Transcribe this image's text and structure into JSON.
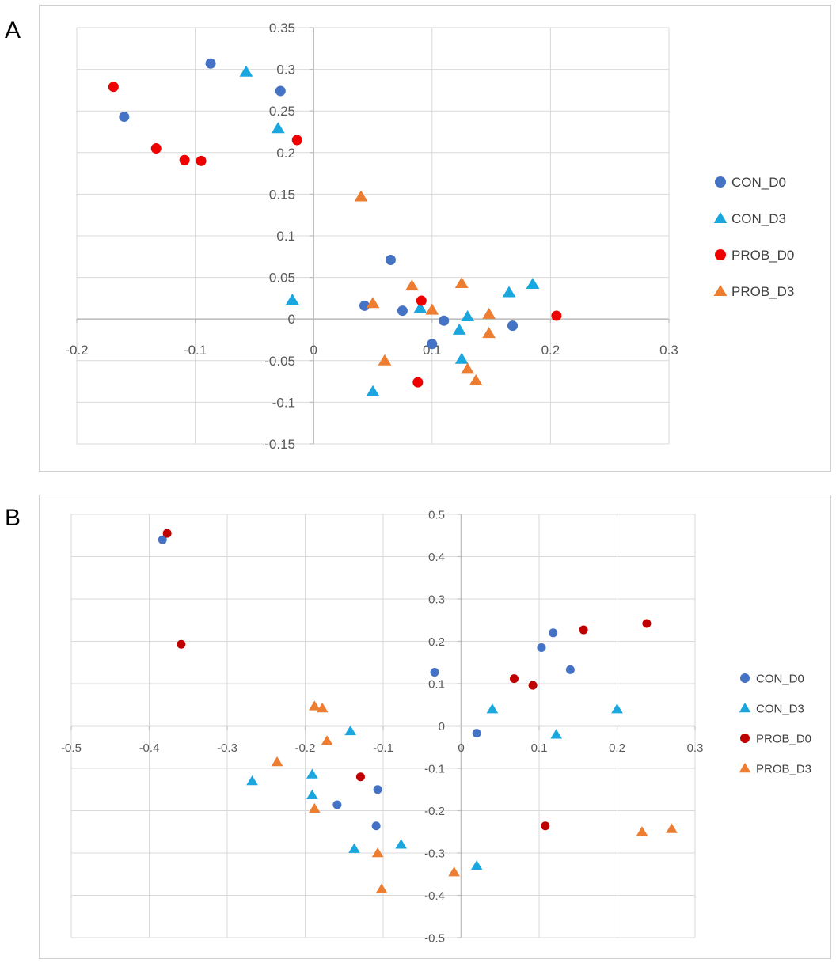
{
  "panels": {
    "a_label": "A",
    "b_label": "B"
  },
  "colors": {
    "CON_D0": "#4472c4",
    "CON_D3": "#1aa7e0",
    "PROB_D0_A": "#ee0000",
    "PROB_D0_B": "#c00000",
    "PROB_D3": "#ed7d31",
    "grid": "#d9d9d9",
    "axis": "#bfbfbf"
  },
  "chart_data": [
    {
      "type": "scatter",
      "panel": "A",
      "title": "",
      "xlim": [
        -0.2,
        0.3
      ],
      "ylim": [
        -0.15,
        0.35
      ],
      "x_ticks": [
        "-0.2",
        "-0.1",
        "0",
        "0.1",
        "0.2",
        "0.3"
      ],
      "y_ticks": [
        "0.35",
        "0.3",
        "0.25",
        "0.2",
        "0.15",
        "0.1",
        "0.05",
        "0",
        "-0.05",
        "-0.1",
        "-0.15"
      ],
      "legend": [
        "CON_D0",
        "CON_D3",
        "PROB_D0",
        "PROB_D3"
      ],
      "series": [
        {
          "name": "CON_D0",
          "marker": "circle",
          "points": [
            [
              -0.087,
              0.307
            ],
            [
              -0.16,
              0.243
            ],
            [
              -0.028,
              0.274
            ],
            [
              0.065,
              0.071
            ],
            [
              0.043,
              0.016
            ],
            [
              0.075,
              0.01
            ],
            [
              0.11,
              -0.002
            ],
            [
              0.1,
              -0.03
            ],
            [
              0.168,
              -0.008
            ]
          ]
        },
        {
          "name": "CON_D3",
          "marker": "triangle",
          "points": [
            [
              -0.057,
              0.297
            ],
            [
              -0.03,
              0.229
            ],
            [
              -0.018,
              0.023
            ],
            [
              0.05,
              -0.087
            ],
            [
              0.09,
              0.013
            ],
            [
              0.123,
              -0.013
            ],
            [
              0.13,
              0.003
            ],
            [
              0.125,
              -0.048
            ],
            [
              0.165,
              0.032
            ],
            [
              0.185,
              0.042
            ]
          ]
        },
        {
          "name": "PROB_D0",
          "marker": "circle",
          "points": [
            [
              -0.169,
              0.279
            ],
            [
              -0.133,
              0.205
            ],
            [
              -0.109,
              0.191
            ],
            [
              -0.095,
              0.19
            ],
            [
              -0.014,
              0.215
            ],
            [
              0.091,
              0.022
            ],
            [
              0.088,
              -0.076
            ],
            [
              0.205,
              0.004
            ]
          ]
        },
        {
          "name": "PROB_D3",
          "marker": "triangle",
          "points": [
            [
              0.04,
              0.147
            ],
            [
              0.05,
              0.019
            ],
            [
              0.06,
              -0.05
            ],
            [
              0.083,
              0.04
            ],
            [
              0.1,
              0.011
            ],
            [
              0.125,
              0.043
            ],
            [
              0.13,
              -0.06
            ],
            [
              0.137,
              -0.074
            ],
            [
              0.148,
              0.006
            ],
            [
              0.148,
              -0.017
            ]
          ]
        }
      ]
    },
    {
      "type": "scatter",
      "panel": "B",
      "title": "",
      "xlim": [
        -0.5,
        0.3
      ],
      "ylim": [
        -0.5,
        0.5
      ],
      "x_ticks": [
        "-0.5",
        "-0.4",
        "-0.3",
        "-0.2",
        "-0.1",
        "0",
        "0.1",
        "0.2",
        "0.3"
      ],
      "y_ticks": [
        "0.5",
        "0.4",
        "0.3",
        "0.2",
        "0.1",
        "0",
        "-0.1",
        "-0.2",
        "-0.3",
        "-0.4",
        "-0.5"
      ],
      "legend": [
        "CON_D0",
        "CON_D3",
        "PROB_D0",
        "PROB_D3"
      ],
      "series": [
        {
          "name": "CON_D0",
          "marker": "circle",
          "points": [
            [
              -0.383,
              0.44
            ],
            [
              -0.034,
              0.127
            ],
            [
              0.02,
              -0.017
            ],
            [
              0.103,
              0.185
            ],
            [
              0.118,
              0.22
            ],
            [
              0.14,
              0.133
            ],
            [
              -0.107,
              -0.15
            ],
            [
              -0.159,
              -0.186
            ],
            [
              -0.109,
              -0.236
            ]
          ]
        },
        {
          "name": "CON_D3",
          "marker": "triangle",
          "points": [
            [
              -0.268,
              -0.13
            ],
            [
              -0.191,
              -0.114
            ],
            [
              -0.191,
              -0.163
            ],
            [
              -0.142,
              -0.012
            ],
            [
              -0.137,
              -0.29
            ],
            [
              -0.077,
              -0.28
            ],
            [
              0.04,
              0.04
            ],
            [
              0.02,
              -0.33
            ],
            [
              0.122,
              -0.02
            ],
            [
              0.2,
              0.04
            ]
          ]
        },
        {
          "name": "PROB_D0",
          "marker": "circle",
          "points": [
            [
              -0.377,
              0.455
            ],
            [
              -0.359,
              0.193
            ],
            [
              -0.129,
              -0.12
            ],
            [
              0.068,
              0.112
            ],
            [
              0.092,
              0.096
            ],
            [
              0.157,
              0.227
            ],
            [
              0.238,
              0.242
            ],
            [
              0.108,
              -0.236
            ]
          ]
        },
        {
          "name": "PROB_D3",
          "marker": "triangle",
          "points": [
            [
              -0.188,
              0.047
            ],
            [
              -0.178,
              0.042
            ],
            [
              -0.172,
              -0.035
            ],
            [
              -0.236,
              -0.085
            ],
            [
              -0.188,
              -0.195
            ],
            [
              -0.107,
              -0.3
            ],
            [
              -0.102,
              -0.385
            ],
            [
              -0.009,
              -0.345
            ],
            [
              0.232,
              -0.25
            ],
            [
              0.27,
              -0.243
            ]
          ]
        }
      ]
    }
  ]
}
